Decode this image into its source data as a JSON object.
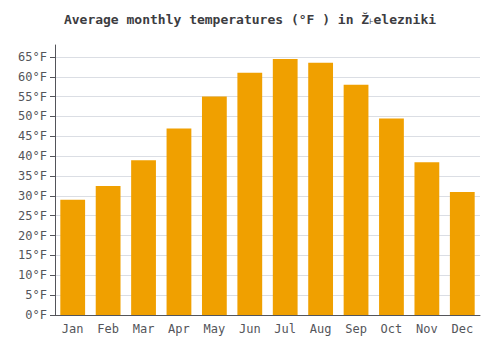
{
  "chart_data": {
    "type": "bar",
    "title": "Average monthly temperatures (°F ) in Ž˫elezniki",
    "categories": [
      "Jan",
      "Feb",
      "Mar",
      "Apr",
      "May",
      "Jun",
      "Jul",
      "Aug",
      "Sep",
      "Oct",
      "Nov",
      "Dec"
    ],
    "values": [
      29,
      32.5,
      39,
      47,
      55,
      61,
      64.5,
      63.5,
      58,
      49.5,
      38.5,
      31
    ],
    "color": "#F0A000",
    "ylim": [
      0,
      68
    ],
    "yticks": [
      {
        "value": 0,
        "label": "0°F"
      },
      {
        "value": 5,
        "label": "5°F"
      },
      {
        "value": 10,
        "label": "10°F"
      },
      {
        "value": 15,
        "label": "15°F"
      },
      {
        "value": 20,
        "label": "20°F"
      },
      {
        "value": 25,
        "label": "25°F"
      },
      {
        "value": 30,
        "label": "30°F"
      },
      {
        "value": 35,
        "label": "35°F"
      },
      {
        "value": 40,
        "label": "40°F"
      },
      {
        "value": 45,
        "label": "45°F"
      },
      {
        "value": 50,
        "label": "50°F"
      },
      {
        "value": 55,
        "label": "55°F"
      },
      {
        "value": 60,
        "label": "60°F"
      },
      {
        "value": 65,
        "label": "65°F"
      }
    ],
    "grid": true
  }
}
